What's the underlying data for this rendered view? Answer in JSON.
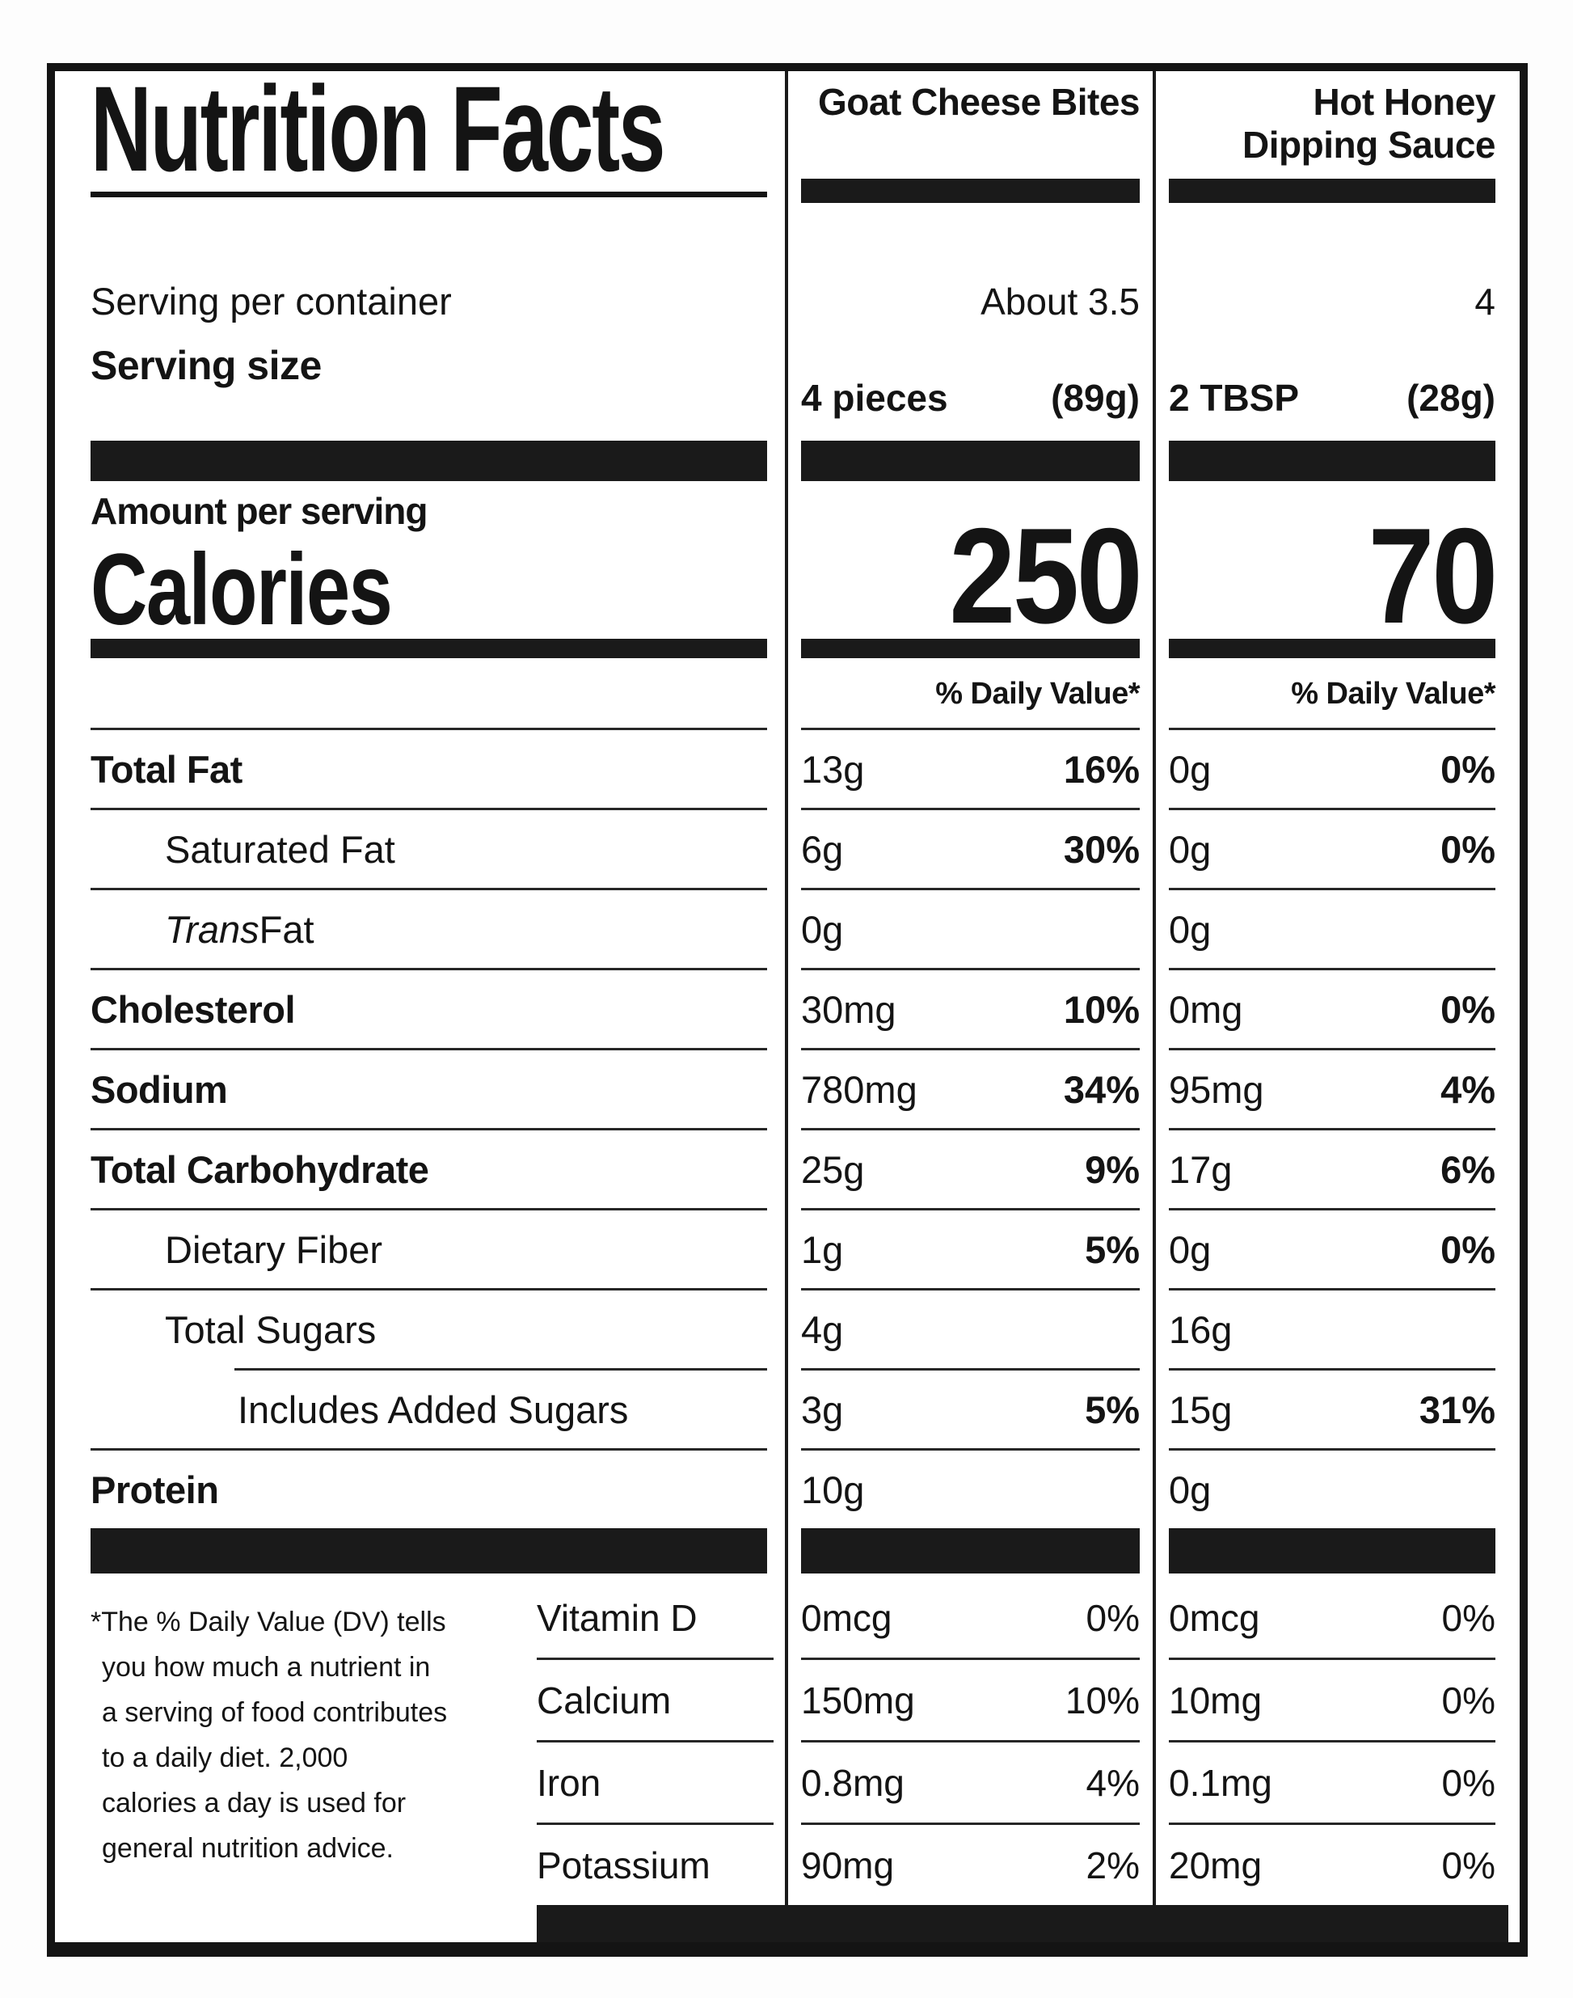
{
  "label": {
    "title": "Nutrition Facts",
    "serving_per_container_label": "Serving per container",
    "serving_size_label": "Serving size",
    "amount_per_serving_label": "Amount per serving",
    "calories_label": "Calories",
    "daily_value_header": "% Daily Value*",
    "columns": [
      {
        "name": "Goat Cheese Bites",
        "servings_per_container": "About 3.5",
        "serving_size_amount": "4 pieces",
        "serving_size_weight": "(89g)",
        "calories": "250"
      },
      {
        "name": "Hot Honey Dipping Sauce",
        "servings_per_container": "4",
        "serving_size_amount": "2 TBSP",
        "serving_size_weight": "(28g)",
        "calories": "70"
      }
    ],
    "nutrients": [
      {
        "name": "Total Fat",
        "bold": true,
        "indent": 0,
        "col1": {
          "amount": "13g",
          "dv": "16%"
        },
        "col2": {
          "amount": "0g",
          "dv": "0%"
        }
      },
      {
        "name": "Saturated Fat",
        "bold": false,
        "indent": 1,
        "col1": {
          "amount": "6g",
          "dv": "30%"
        },
        "col2": {
          "amount": "0g",
          "dv": "0%"
        }
      },
      {
        "name_italic": "Trans",
        "name": " Fat",
        "bold": false,
        "indent": 1,
        "col1": {
          "amount": "0g",
          "dv": ""
        },
        "col2": {
          "amount": "0g",
          "dv": ""
        }
      },
      {
        "name": "Cholesterol",
        "bold": true,
        "indent": 0,
        "col1": {
          "amount": "30mg",
          "dv": "10%"
        },
        "col2": {
          "amount": "0mg",
          "dv": "0%"
        }
      },
      {
        "name": "Sodium",
        "bold": true,
        "indent": 0,
        "col1": {
          "amount": "780mg",
          "dv": "34%"
        },
        "col2": {
          "amount": "95mg",
          "dv": "4%"
        }
      },
      {
        "name": "Total Carbohydrate",
        "bold": true,
        "indent": 0,
        "col1": {
          "amount": "25g",
          "dv": "9%"
        },
        "col2": {
          "amount": "17g",
          "dv": "6%"
        }
      },
      {
        "name": "Dietary Fiber",
        "bold": false,
        "indent": 1,
        "col1": {
          "amount": "1g",
          "dv": "5%"
        },
        "col2": {
          "amount": "0g",
          "dv": "0%"
        }
      },
      {
        "name": "Total Sugars",
        "bold": false,
        "indent": 1,
        "col1": {
          "amount": "4g",
          "dv": ""
        },
        "col2": {
          "amount": "16g",
          "dv": ""
        }
      },
      {
        "name": "Includes Added Sugars",
        "bold": false,
        "indent": 2,
        "divider_indent": true,
        "col1": {
          "amount": "3g",
          "dv": "5%"
        },
        "col2": {
          "amount": "15g",
          "dv": "31%"
        }
      },
      {
        "name": "Protein",
        "bold": true,
        "indent": 0,
        "col1": {
          "amount": "10g",
          "dv": ""
        },
        "col2": {
          "amount": "0g",
          "dv": ""
        }
      }
    ],
    "vitamins": [
      {
        "name": "Vitamin D",
        "col1": {
          "amount": "0mcg",
          "dv": "0%"
        },
        "col2": {
          "amount": "0mcg",
          "dv": "0%"
        }
      },
      {
        "name": "Calcium",
        "col1": {
          "amount": "150mg",
          "dv": "10%"
        },
        "col2": {
          "amount": "10mg",
          "dv": "0%"
        }
      },
      {
        "name": "Iron",
        "col1": {
          "amount": "0.8mg",
          "dv": "4%"
        },
        "col2": {
          "amount": "0.1mg",
          "dv": "0%"
        }
      },
      {
        "name": "Potassium",
        "col1": {
          "amount": "90mg",
          "dv": "2%"
        },
        "col2": {
          "amount": "20mg",
          "dv": "0%"
        }
      }
    ],
    "footnote": "*The % Daily Value (DV) tells\nyou how much a nutrient in\na serving of food contributes\nto a daily diet. 2,000\ncalories a day is used for\ngeneral nutrition advice.",
    "colors": {
      "ink": "#141414",
      "paper": "#ffffff"
    }
  }
}
